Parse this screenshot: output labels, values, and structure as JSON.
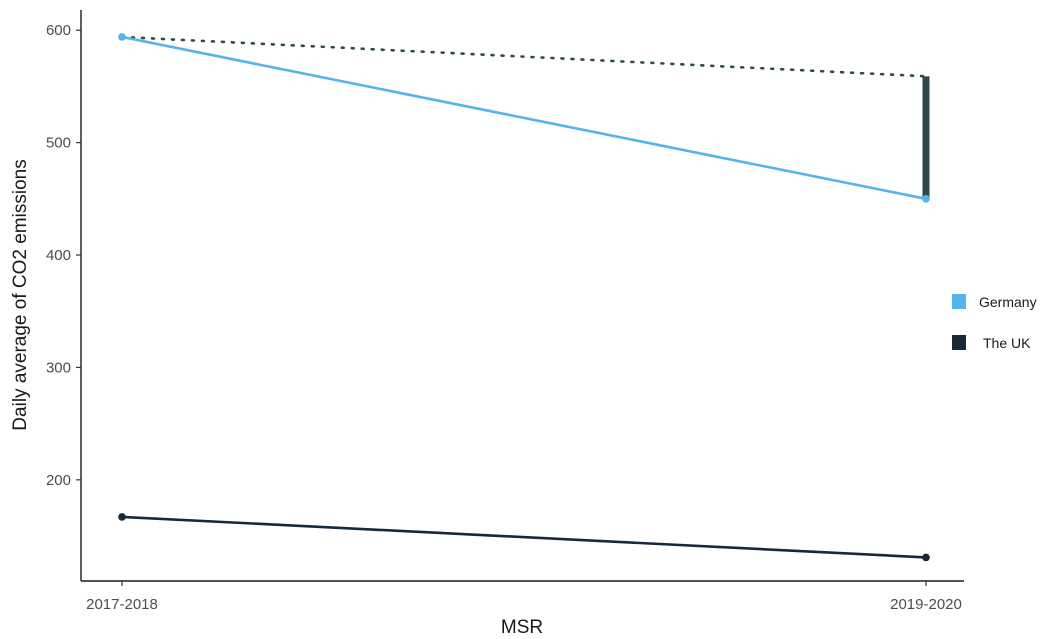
{
  "chart_data": {
    "type": "line",
    "categories": [
      "2017-2018",
      "2019-2020"
    ],
    "xlabel": "MSR",
    "ylabel": "Daily average of CO2 emissions",
    "ylim": [
      110,
      618
    ],
    "yticks": [
      200,
      300,
      400,
      500,
      600
    ],
    "grid": false,
    "legend_position": "right",
    "series": [
      {
        "name": "Germany",
        "color": "#56b4e9",
        "values": [
          594,
          450
        ]
      },
      {
        "name": "The UK",
        "color": "#17283b",
        "values": [
          167,
          131
        ]
      }
    ],
    "annotations": {
      "counterfactual": {
        "style": "dotted",
        "color": "#2f4a4f",
        "values": [
          594,
          559
        ]
      },
      "gap_bar": {
        "category": "2019-2020",
        "color": "#2f4a4f",
        "from": 450,
        "to": 559
      }
    }
  }
}
